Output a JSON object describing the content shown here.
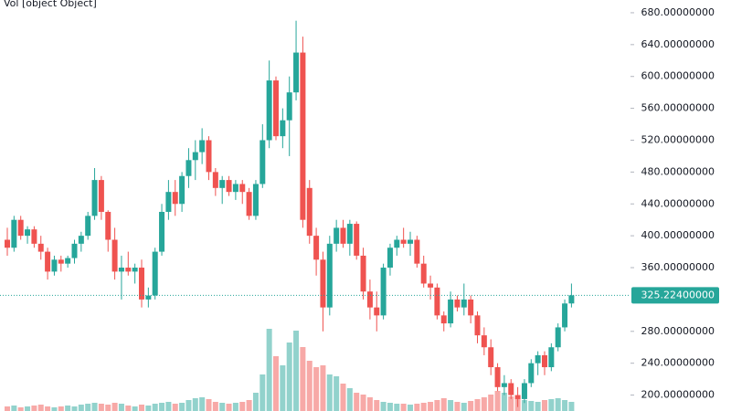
{
  "chart_data": {
    "type": "candlestick",
    "volume_legend": "Vol [object Object]",
    "up_color": "#26a69a",
    "down_color": "#ef5350",
    "open": [
      395,
      385,
      420,
      400,
      408,
      390,
      380,
      355,
      370,
      365,
      372,
      390,
      400,
      425,
      470,
      430,
      395,
      355,
      360,
      355,
      360,
      320,
      325,
      380,
      430,
      455,
      440,
      475,
      495,
      505,
      520,
      480,
      460,
      470,
      455,
      465,
      455,
      425,
      465,
      520,
      595,
      525,
      545,
      580,
      630,
      460,
      400,
      370,
      310,
      390,
      410,
      390,
      415,
      375,
      330,
      310,
      300,
      360,
      385,
      395,
      390,
      395,
      365,
      340,
      335,
      300,
      290,
      320,
      310,
      320,
      300,
      275,
      260,
      235,
      210,
      215,
      200,
      195,
      215,
      240,
      250,
      235,
      260,
      285,
      315
    ],
    "high": [
      410,
      425,
      425,
      412,
      412,
      400,
      385,
      375,
      375,
      375,
      395,
      405,
      430,
      485,
      475,
      432,
      410,
      375,
      380,
      365,
      370,
      335,
      385,
      440,
      470,
      470,
      480,
      510,
      520,
      535,
      525,
      485,
      475,
      475,
      470,
      470,
      460,
      470,
      540,
      620,
      600,
      560,
      600,
      670,
      650,
      470,
      410,
      380,
      400,
      420,
      420,
      420,
      418,
      385,
      345,
      330,
      365,
      390,
      400,
      410,
      405,
      400,
      375,
      350,
      340,
      305,
      330,
      325,
      340,
      325,
      305,
      285,
      270,
      240,
      225,
      220,
      210,
      220,
      245,
      255,
      255,
      265,
      290,
      320,
      340
    ],
    "low": [
      375,
      380,
      395,
      390,
      385,
      370,
      345,
      350,
      355,
      360,
      365,
      380,
      395,
      420,
      420,
      380,
      345,
      320,
      350,
      340,
      310,
      310,
      320,
      375,
      420,
      425,
      430,
      460,
      470,
      490,
      470,
      450,
      440,
      450,
      445,
      440,
      420,
      420,
      460,
      510,
      520,
      510,
      500,
      570,
      410,
      390,
      350,
      280,
      300,
      380,
      385,
      375,
      370,
      320,
      295,
      280,
      295,
      350,
      375,
      385,
      375,
      360,
      335,
      320,
      295,
      280,
      285,
      305,
      300,
      290,
      265,
      250,
      225,
      205,
      200,
      195,
      185,
      190,
      210,
      225,
      225,
      230,
      255,
      280,
      310
    ],
    "close": [
      385,
      420,
      400,
      408,
      390,
      380,
      355,
      370,
      365,
      372,
      390,
      400,
      425,
      470,
      430,
      395,
      355,
      360,
      355,
      360,
      320,
      325,
      380,
      430,
      455,
      440,
      475,
      495,
      505,
      520,
      480,
      460,
      470,
      455,
      465,
      455,
      425,
      465,
      520,
      595,
      525,
      545,
      580,
      630,
      420,
      400,
      370,
      310,
      390,
      410,
      390,
      415,
      375,
      330,
      310,
      300,
      360,
      385,
      395,
      390,
      395,
      365,
      340,
      335,
      300,
      290,
      320,
      310,
      320,
      300,
      275,
      260,
      235,
      210,
      215,
      200,
      195,
      215,
      240,
      250,
      235,
      260,
      285,
      315,
      325.224
    ],
    "volume": [
      5,
      6,
      4,
      5,
      6,
      7,
      5,
      4,
      5,
      6,
      5,
      7,
      8,
      9,
      8,
      7,
      9,
      8,
      6,
      5,
      7,
      6,
      8,
      9,
      10,
      8,
      9,
      12,
      14,
      15,
      13,
      10,
      9,
      8,
      9,
      10,
      12,
      20,
      40,
      90,
      60,
      50,
      75,
      88,
      70,
      55,
      48,
      50,
      40,
      38,
      30,
      25,
      20,
      18,
      15,
      12,
      10,
      9,
      8,
      8,
      7,
      8,
      9,
      10,
      12,
      14,
      12,
      10,
      9,
      11,
      13,
      15,
      18,
      22,
      20,
      16,
      14,
      12,
      11,
      10,
      12,
      13,
      14,
      12,
      10
    ],
    "ylim": [
      180,
      696
    ],
    "yticks": [
      {
        "value": 680,
        "label": "680.00000000"
      },
      {
        "value": 640,
        "label": "640.00000000"
      },
      {
        "value": 600,
        "label": "600.00000000"
      },
      {
        "value": 560,
        "label": "560.00000000"
      },
      {
        "value": 520,
        "label": "520.00000000"
      },
      {
        "value": 480,
        "label": "480.00000000"
      },
      {
        "value": 440,
        "label": "440.00000000"
      },
      {
        "value": 400,
        "label": "400.00000000"
      },
      {
        "value": 360,
        "label": "360.00000000"
      },
      {
        "value": 280,
        "label": "280.00000000"
      },
      {
        "value": 240,
        "label": "240.00000000"
      },
      {
        "value": 200,
        "label": "200.00000000"
      }
    ],
    "last_price": {
      "value": 325.224,
      "label": "325.22400000"
    },
    "vlim": [
      0,
      100
    ]
  }
}
